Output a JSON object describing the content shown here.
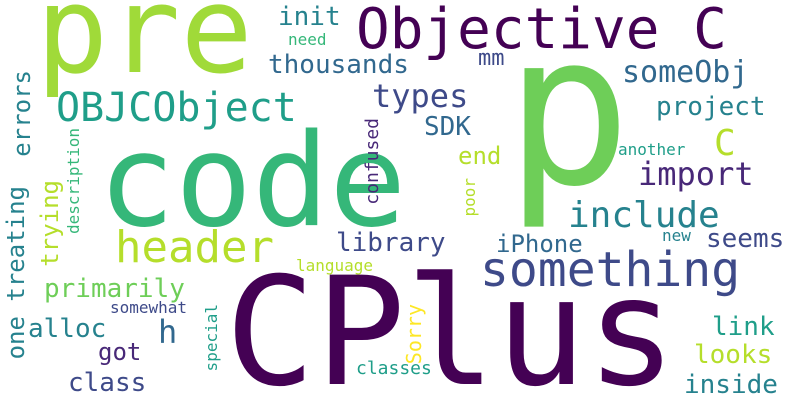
{
  "words": {
    "pre": "pre",
    "objective_c": "Objective C",
    "p": "p",
    "code": "code",
    "cplus": "CPlus",
    "header": "header",
    "something": "something",
    "objcobject": "OBJCObject",
    "types": "types",
    "someobj": "someObj",
    "import": "import",
    "include": "include",
    "library": "library",
    "iphone": "iPhone",
    "seems": "seems",
    "init": "init",
    "thousands": "thousands",
    "mm": "mm",
    "need": "need",
    "project": "project",
    "c": "C",
    "sdk": "SDK",
    "end": "end",
    "another": "another",
    "errors": "errors",
    "treating": "treating",
    "one": "one",
    "trying": "trying",
    "description": "description",
    "confused": "confused",
    "poor": "poor",
    "language": "language",
    "primarily": "primarily",
    "somewhat": "somewhat",
    "alloc": "alloc",
    "h": "h",
    "got": "got",
    "class": "class",
    "special": "special",
    "sorry": "Sorry",
    "classes": "classes",
    "link": "link",
    "looks": "looks",
    "inside": "inside",
    "new": "new"
  },
  "colors": {
    "dark_purple": "#440154",
    "purple": "#482878",
    "indigo": "#3e4a89",
    "blue": "#31688e",
    "teal": "#26828e",
    "green_teal": "#1f9e89",
    "green": "#35b779",
    "light_green": "#6ece58",
    "lime": "#b5de2b",
    "yellow": "#fde725"
  }
}
